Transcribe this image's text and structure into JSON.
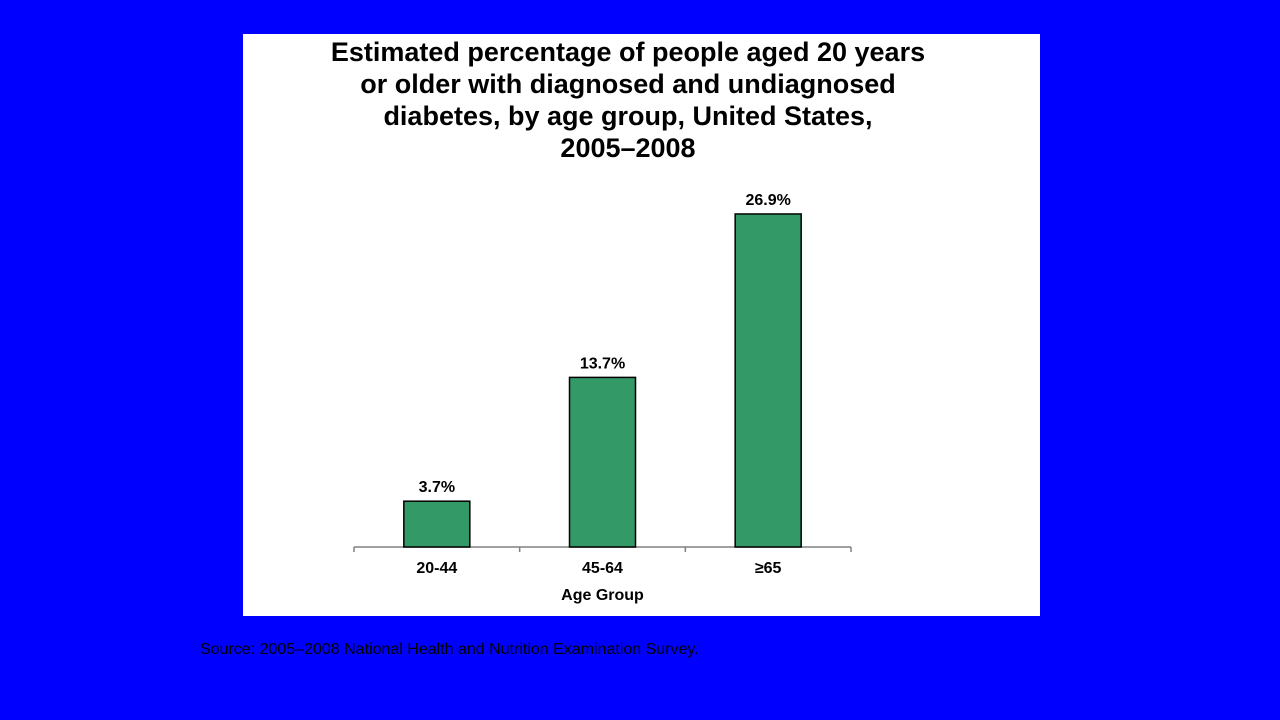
{
  "chart_data": {
    "type": "bar",
    "title_lines": [
      "Estimated percentage of people aged 20 years",
      "or older with diagnosed and undiagnosed",
      "diabetes, by age group, United States,",
      "2005–2008"
    ],
    "categories": [
      "20-44",
      "45-64",
      "≥65"
    ],
    "values": [
      3.7,
      13.7,
      26.9
    ],
    "data_labels": [
      "3.7%",
      "13.7%",
      "26.9%"
    ],
    "xlabel": "Age Group",
    "ylabel": "",
    "ylim": [
      0,
      30
    ],
    "grid": false,
    "legend": "none",
    "bar_color": "#339966",
    "bar_border_color": "#000000"
  },
  "slide": {
    "background_color": "#0000ff",
    "source_text": "Source: 2005–2008 National Health and Nutrition Examination Survey."
  }
}
